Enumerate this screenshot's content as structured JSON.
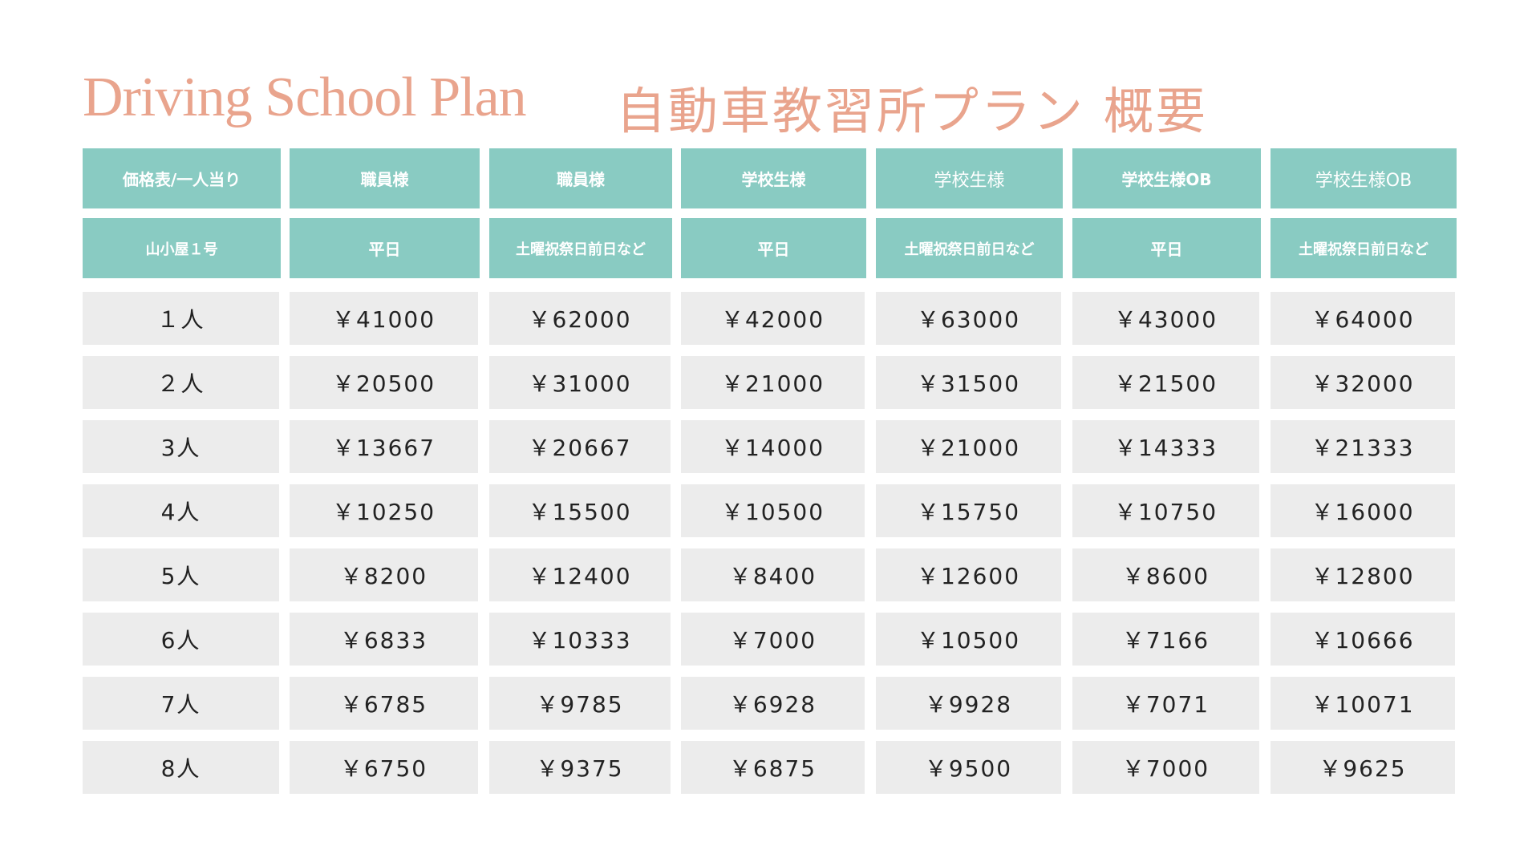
{
  "header": {
    "title_en": "Driving School Plan",
    "title_ja": "自動車教習所プラン 概要"
  },
  "table": {
    "header_rows": [
      [
        "価格表/一人当り",
        "職員様",
        "職員様",
        "学校生様",
        "学校生様",
        "学校生様OB",
        "学校生様OB"
      ],
      [
        "山小屋１号",
        "平日",
        "土曜祝祭日前日など",
        "平日",
        "土曜祝祭日前日など",
        "平日",
        "土曜祝祭日前日など"
      ]
    ],
    "rows": [
      [
        "１人",
        "￥41000",
        "￥62000",
        "￥42000",
        "￥63000",
        "￥43000",
        "￥64000"
      ],
      [
        "２人",
        "￥20500",
        "￥31000",
        "￥21000",
        "￥31500",
        "￥21500",
        "￥32000"
      ],
      [
        "3人",
        "￥13667",
        "￥20667",
        "￥14000",
        "￥21000",
        "￥14333",
        "￥21333"
      ],
      [
        "4人",
        "￥10250",
        "￥15500",
        "￥10500",
        "￥15750",
        "￥10750",
        "￥16000"
      ],
      [
        "5人",
        "￥8200",
        "￥12400",
        "￥8400",
        "￥12600",
        "￥8600",
        "￥12800"
      ],
      [
        "6人",
        "￥6833",
        "￥10333",
        "￥7000",
        "￥10500",
        "￥7166",
        "￥10666"
      ],
      [
        "7人",
        "￥6785",
        "￥9785",
        "￥6928",
        "￥9928",
        "￥7071",
        "￥10071"
      ],
      [
        "8人",
        "￥6750",
        "￥9375",
        "￥6875",
        "￥9500",
        "￥7000",
        "￥9625"
      ]
    ]
  }
}
